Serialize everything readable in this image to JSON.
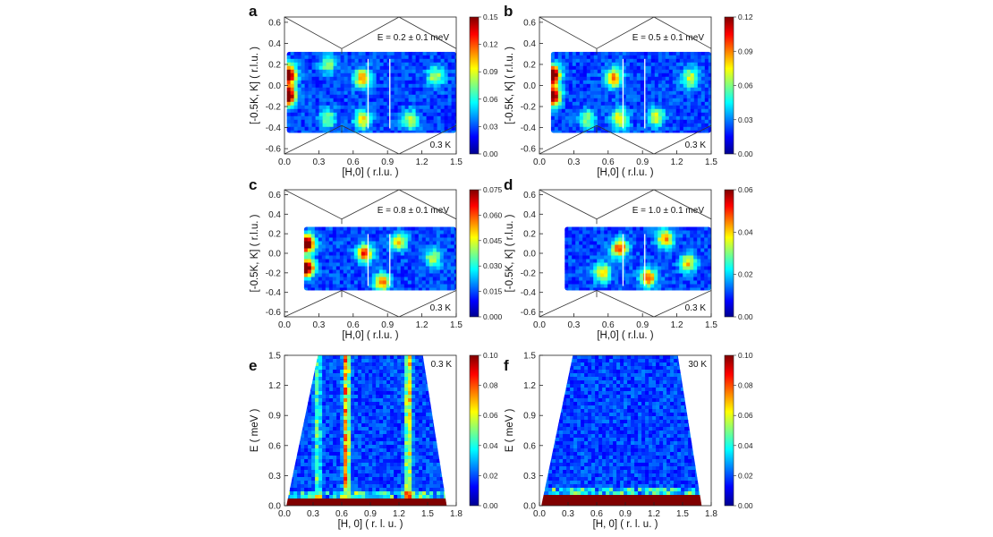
{
  "chart_data": [
    {
      "panel": "a",
      "type": "heatmap",
      "annotation": "E = 0.2 ± 0.1 meV",
      "temperature": "0.3 K",
      "xlabel": "[H,0] ( r.l.u. )",
      "ylabel": "[-0.5K, K] ( r.l.u. )",
      "xlim": [
        0,
        1.5
      ],
      "ylim": [
        -0.65,
        0.65
      ],
      "xticks": [
        "0.0",
        "0.3",
        "0.6",
        "0.9",
        "1.2",
        "1.5"
      ],
      "yticks": [
        "-0.6",
        "-0.4",
        "-0.2",
        "0.0",
        "0.2",
        "0.4",
        "0.6"
      ],
      "colorbar": {
        "min": 0.0,
        "max": 0.15,
        "ticks": [
          "0.15",
          "0.12",
          "0.09",
          "0.06",
          "0.03",
          "0.00"
        ]
      },
      "coverage": {
        "x": [
          0.02,
          1.5
        ],
        "y": [
          -0.45,
          0.32
        ]
      },
      "hotspots": [
        {
          "x": 0.03,
          "y": -0.1,
          "value": 0.15
        },
        {
          "x": 0.03,
          "y": 0.1,
          "value": 0.15
        },
        {
          "x": 0.68,
          "y": 0.07,
          "value": 0.08
        },
        {
          "x": 0.68,
          "y": -0.33,
          "value": 0.07
        },
        {
          "x": 0.38,
          "y": 0.2,
          "value": 0.05
        },
        {
          "x": 0.38,
          "y": -0.32,
          "value": 0.05
        },
        {
          "x": 1.32,
          "y": 0.08,
          "value": 0.06
        },
        {
          "x": 1.1,
          "y": -0.33,
          "value": 0.06
        }
      ]
    },
    {
      "panel": "b",
      "type": "heatmap",
      "annotation": "E = 0.5 ± 0.1 meV",
      "temperature": "0.3 K",
      "xlabel": "[H,0] ( r.l.u. )",
      "ylabel": "[-0.5K, K] ( r.l.u. )",
      "xlim": [
        0,
        1.5
      ],
      "ylim": [
        -0.65,
        0.65
      ],
      "xticks": [
        "0.0",
        "0.3",
        "0.6",
        "0.9",
        "1.2",
        "1.5"
      ],
      "yticks": [
        "-0.6",
        "-0.4",
        "-0.2",
        "0.0",
        "0.2",
        "0.4",
        "0.6"
      ],
      "colorbar": {
        "min": 0.0,
        "max": 0.12,
        "ticks": [
          "0.12",
          "0.09",
          "0.06",
          "0.03",
          "0.00"
        ]
      },
      "coverage": {
        "x": [
          0.1,
          1.5
        ],
        "y": [
          -0.45,
          0.32
        ]
      },
      "hotspots": [
        {
          "x": 0.11,
          "y": -0.1,
          "value": 0.12
        },
        {
          "x": 0.11,
          "y": 0.1,
          "value": 0.12
        },
        {
          "x": 0.65,
          "y": 0.07,
          "value": 0.07
        },
        {
          "x": 0.7,
          "y": -0.32,
          "value": 0.06
        },
        {
          "x": 1.32,
          "y": 0.07,
          "value": 0.05
        },
        {
          "x": 1.02,
          "y": -0.3,
          "value": 0.05
        },
        {
          "x": 0.42,
          "y": -0.32,
          "value": 0.04
        }
      ]
    },
    {
      "panel": "c",
      "type": "heatmap",
      "annotation": "E = 0.8 ± 0.1 meV",
      "temperature": "0.3 K",
      "xlabel": "[H,0] ( r.l.u. )",
      "ylabel": "[-0.5K, K] ( r.l.u. )",
      "xlim": [
        0,
        1.5
      ],
      "ylim": [
        -0.65,
        0.65
      ],
      "xticks": [
        "0.0",
        "0.3",
        "0.6",
        "0.9",
        "1.2",
        "1.5"
      ],
      "yticks": [
        "-0.6",
        "-0.4",
        "-0.2",
        "0.0",
        "0.2",
        "0.4",
        "0.6"
      ],
      "colorbar": {
        "min": 0.0,
        "max": 0.075,
        "ticks": [
          "0.075",
          "0.060",
          "0.045",
          "0.030",
          "0.015",
          "0.000"
        ]
      },
      "coverage": {
        "x": [
          0.17,
          1.5
        ],
        "y": [
          -0.38,
          0.27
        ]
      },
      "hotspots": [
        {
          "x": 0.19,
          "y": 0.1,
          "value": 0.075
        },
        {
          "x": 0.19,
          "y": -0.15,
          "value": 0.075
        },
        {
          "x": 0.7,
          "y": 0.0,
          "value": 0.05
        },
        {
          "x": 0.85,
          "y": -0.3,
          "value": 0.045
        },
        {
          "x": 1.0,
          "y": 0.12,
          "value": 0.035
        },
        {
          "x": 1.3,
          "y": -0.05,
          "value": 0.03
        }
      ]
    },
    {
      "panel": "d",
      "type": "heatmap",
      "annotation": "E = 1.0 ± 0.1 meV",
      "temperature": "0.3 K",
      "xlabel": "[H,0] ( r.l.u. )",
      "ylabel": "[-0.5K, K] ( r.l.u. )",
      "xlim": [
        0,
        1.5
      ],
      "ylim": [
        -0.65,
        0.65
      ],
      "xticks": [
        "0.0",
        "0.3",
        "0.6",
        "0.9",
        "1.2",
        "1.5"
      ],
      "yticks": [
        "-0.6",
        "-0.4",
        "-0.2",
        "0.0",
        "0.2",
        "0.4",
        "0.6"
      ],
      "colorbar": {
        "min": 0.0,
        "max": 0.06,
        "ticks": [
          "0.06",
          "0.04",
          "0.02",
          "0.00"
        ]
      },
      "coverage": {
        "x": [
          0.22,
          1.5
        ],
        "y": [
          -0.38,
          0.27
        ]
      },
      "hotspots": [
        {
          "x": 0.7,
          "y": 0.05,
          "value": 0.04
        },
        {
          "x": 0.95,
          "y": -0.25,
          "value": 0.038
        },
        {
          "x": 1.1,
          "y": 0.15,
          "value": 0.035
        },
        {
          "x": 0.55,
          "y": -0.2,
          "value": 0.03
        },
        {
          "x": 1.3,
          "y": -0.1,
          "value": 0.03
        }
      ]
    },
    {
      "panel": "e",
      "type": "heatmap",
      "temperature": "0.3 K",
      "xlabel": "[H, 0] ( r. l. u. )",
      "ylabel": "E ( meV )",
      "xlim": [
        0,
        1.8
      ],
      "ylim": [
        0,
        1.5
      ],
      "xticks": [
        "0.0",
        "0.3",
        "0.6",
        "0.9",
        "1.2",
        "1.5",
        "1.8"
      ],
      "yticks": [
        "0.0",
        "0.3",
        "0.6",
        "0.9",
        "1.2",
        "1.5"
      ],
      "colorbar": {
        "min": 0.0,
        "max": 0.1,
        "ticks": [
          "0.10",
          "0.08",
          "0.06",
          "0.04",
          "0.02",
          "0.00"
        ]
      },
      "coverage": {
        "bottom": [
          0.02,
          1.7
        ],
        "top": [
          0.35,
          1.45
        ]
      },
      "streaks": [
        {
          "x": 0.65,
          "value": 0.06
        },
        {
          "x": 1.3,
          "value": 0.05
        },
        {
          "x": 0.35,
          "value": 0.03
        }
      ],
      "low_energy_band": {
        "ymax": 0.07,
        "value": 0.1
      }
    },
    {
      "panel": "f",
      "type": "heatmap",
      "temperature": "30 K",
      "xlabel": "[H, 0] ( r. l. u. )",
      "ylabel": "E ( meV )",
      "xlim": [
        0,
        1.8
      ],
      "ylim": [
        0,
        1.5
      ],
      "xticks": [
        "0.0",
        "0.3",
        "0.6",
        "0.9",
        "1.2",
        "1.5",
        "1.8"
      ],
      "yticks": [
        "0.0",
        "0.3",
        "0.6",
        "0.9",
        "1.2",
        "1.5"
      ],
      "colorbar": {
        "min": 0.0,
        "max": 0.1,
        "ticks": [
          "0.10",
          "0.08",
          "0.06",
          "0.04",
          "0.02",
          "0.00"
        ]
      },
      "coverage": {
        "bottom": [
          0.02,
          1.7
        ],
        "top": [
          0.35,
          1.45
        ]
      },
      "streaks": [],
      "low_energy_band": {
        "ymax": 0.1,
        "value": 0.1
      }
    }
  ],
  "colors": {
    "colormap": [
      "#00008f",
      "#0000ff",
      "#0080ff",
      "#00ffff",
      "#80ff80",
      "#ffff00",
      "#ff8000",
      "#ff0000",
      "#800000"
    ],
    "overlay_line": "#ffffff",
    "zone_boundary": "#333333"
  }
}
